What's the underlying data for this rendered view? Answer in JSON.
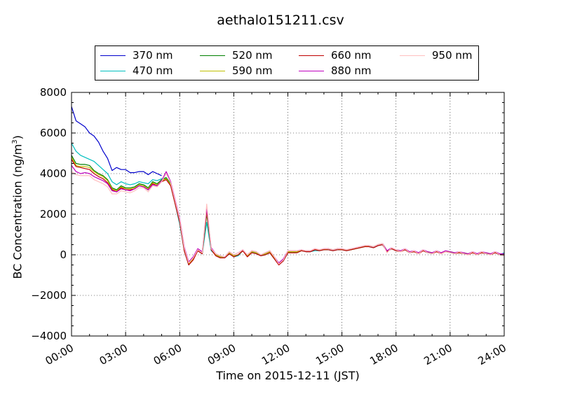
{
  "chart_data": {
    "type": "line",
    "title": "aethalo151211.csv",
    "xlabel": "Time on 2015-12-11 (JST)",
    "ylabel_main": "BC Concentration (ng/m",
    "ylabel_sup": "3",
    "ylabel_close": ")",
    "xlim": [
      0,
      24
    ],
    "ylim": [
      -4000,
      8000
    ],
    "x_ticks": [
      0,
      3,
      6,
      9,
      12,
      15,
      18,
      21,
      24
    ],
    "x_tick_labels": [
      "00:00",
      "03:00",
      "06:00",
      "09:00",
      "12:00",
      "15:00",
      "18:00",
      "21:00",
      "24:00"
    ],
    "y_ticks": [
      -4000,
      -2000,
      0,
      2000,
      4000,
      6000,
      8000
    ],
    "y_tick_labels": [
      "−4000",
      "−2000",
      "0",
      "2000",
      "4000",
      "6000",
      "8000"
    ],
    "grid": true,
    "legend_position": "top",
    "x": [
      0,
      0.25,
      0.5,
      0.75,
      1,
      1.25,
      1.5,
      1.75,
      2,
      2.25,
      2.5,
      2.75,
      3,
      3.25,
      3.5,
      3.75,
      4,
      4.25,
      4.5,
      4.75,
      5,
      5.25,
      5.5,
      5.75,
      6,
      6.25,
      6.5,
      6.75,
      7,
      7.25,
      7.5,
      7.75,
      8,
      8.25,
      8.5,
      8.75,
      9,
      9.25,
      9.5,
      9.75,
      10,
      10.25,
      10.5,
      10.75,
      11,
      11.25,
      11.5,
      11.75,
      12,
      12.25,
      12.5,
      12.75,
      13,
      13.25,
      13.5,
      13.75,
      14,
      14.25,
      14.5,
      14.75,
      15,
      15.25,
      15.5,
      15.75,
      16,
      16.25,
      16.5,
      16.75,
      17,
      17.25,
      17.5,
      17.75,
      18,
      18.25,
      18.5,
      18.75,
      19,
      19.25,
      19.5,
      19.75,
      20,
      20.25,
      20.5,
      20.75,
      21,
      21.25,
      21.5,
      21.75,
      22,
      22.25,
      22.5,
      22.75,
      23,
      23.25,
      23.5,
      23.75,
      24
    ],
    "series": [
      {
        "name": "370 nm",
        "color": "#0000cc",
        "values": [
          7300,
          6600,
          6450,
          6300,
          6000,
          5850,
          5550,
          5100,
          4750,
          4150,
          4300,
          4200,
          4200,
          4050,
          4050,
          4100,
          4100,
          3950,
          4100,
          4000,
          3900,
          null,
          null,
          null,
          null,
          null,
          null,
          null,
          null,
          null,
          null,
          null,
          null,
          null,
          null,
          null,
          null,
          null,
          null,
          null,
          null,
          null,
          null,
          null,
          null,
          null,
          null,
          null,
          null,
          null,
          null,
          null,
          null,
          null,
          null,
          null,
          null,
          null,
          null,
          null,
          null,
          null,
          null,
          null,
          null,
          null,
          null,
          null,
          null,
          null,
          null,
          null,
          null,
          null,
          null,
          null,
          null,
          null,
          null,
          null,
          null,
          null,
          null,
          null,
          null,
          null,
          null,
          null,
          null,
          null,
          null,
          null,
          null,
          null,
          null,
          null,
          null
        ]
      },
      {
        "name": "470 nm",
        "color": "#00bfbf",
        "values": [
          5500,
          5100,
          4900,
          4800,
          4700,
          4600,
          4400,
          4200,
          4000,
          3600,
          3450,
          3600,
          3500,
          3450,
          3500,
          3600,
          3550,
          3500,
          3700,
          3650,
          3750,
          3800,
          3400,
          2500,
          1500,
          200,
          -500,
          -200,
          200,
          50,
          1600,
          200,
          0,
          -150,
          -150,
          50,
          -100,
          -50,
          200,
          -50,
          100,
          100,
          -50,
          0,
          100,
          -200,
          -450,
          -300,
          100,
          150,
          100,
          200,
          150,
          150,
          200,
          200,
          250,
          250,
          200,
          250,
          250,
          200,
          250,
          300,
          350,
          400,
          400,
          350,
          450,
          500,
          150,
          300,
          200,
          200,
          250,
          100,
          150,
          100,
          200,
          100,
          100,
          150,
          100,
          150,
          100,
          100,
          100,
          50,
          50,
          100,
          50,
          100,
          50,
          50,
          100,
          0,
          100
        ]
      },
      {
        "name": "520 nm",
        "color": "#007f00",
        "values": [
          4900,
          4500,
          4450,
          4450,
          4400,
          4150,
          4000,
          3900,
          3700,
          3300,
          3200,
          3400,
          3300,
          3300,
          3350,
          3500,
          3450,
          3300,
          3600,
          3500,
          3700,
          3800,
          3500,
          2600,
          1700,
          300,
          -450,
          -200,
          250,
          100,
          2000,
          300,
          0,
          -100,
          -100,
          100,
          -50,
          0,
          200,
          -50,
          150,
          100,
          0,
          50,
          150,
          -150,
          -400,
          -250,
          150,
          150,
          150,
          200,
          200,
          200,
          250,
          250,
          250,
          300,
          250,
          300,
          250,
          250,
          250,
          300,
          350,
          400,
          450,
          400,
          500,
          550,
          200,
          300,
          250,
          200,
          250,
          150,
          150,
          100,
          200,
          150,
          100,
          150,
          100,
          150,
          150,
          100,
          100,
          100,
          50,
          100,
          50,
          100,
          100,
          50,
          100,
          50,
          50
        ]
      },
      {
        "name": "590 nm",
        "color": "#bfbf00",
        "values": [
          4800,
          4400,
          4350,
          4350,
          4300,
          4100,
          3950,
          3850,
          3650,
          3250,
          3150,
          3350,
          3250,
          3250,
          3300,
          3450,
          3400,
          3250,
          3550,
          3450,
          3650,
          3750,
          3450,
          2550,
          1650,
          250,
          -450,
          -200,
          250,
          100,
          2100,
          300,
          0,
          -100,
          -100,
          100,
          -50,
          0,
          200,
          -50,
          150,
          100,
          0,
          50,
          150,
          -150,
          -400,
          -250,
          150,
          150,
          150,
          200,
          200,
          200,
          250,
          250,
          250,
          300,
          250,
          300,
          250,
          250,
          250,
          300,
          350,
          400,
          450,
          400,
          500,
          550,
          200,
          300,
          250,
          200,
          250,
          150,
          150,
          100,
          200,
          150,
          100,
          150,
          100,
          150,
          150,
          100,
          100,
          100,
          50,
          100,
          50,
          100,
          100,
          50,
          100,
          50,
          50
        ]
      },
      {
        "name": "660 nm",
        "color": "#bf0000",
        "values": [
          4700,
          4350,
          4300,
          4250,
          4200,
          4000,
          3850,
          3750,
          3550,
          3200,
          3100,
          3300,
          3200,
          3200,
          3250,
          3400,
          3350,
          3200,
          3500,
          3400,
          3600,
          3700,
          3400,
          2500,
          1600,
          200,
          -500,
          -250,
          200,
          50,
          2200,
          250,
          -50,
          -150,
          -150,
          50,
          -100,
          0,
          200,
          -100,
          100,
          50,
          -50,
          0,
          100,
          -200,
          -500,
          -300,
          100,
          100,
          100,
          200,
          150,
          150,
          250,
          200,
          250,
          250,
          200,
          250,
          250,
          200,
          250,
          300,
          350,
          400,
          400,
          350,
          450,
          500,
          150,
          300,
          200,
          150,
          250,
          100,
          150,
          50,
          200,
          100,
          50,
          150,
          50,
          150,
          100,
          50,
          100,
          50,
          0,
          100,
          0,
          100,
          50,
          0,
          100,
          0,
          0
        ]
      },
      {
        "name": "880 nm",
        "color": "#bf00bf",
        "values": [
          4400,
          4100,
          4000,
          4050,
          4000,
          3850,
          3750,
          3650,
          3500,
          3150,
          3100,
          3250,
          3200,
          3150,
          3250,
          3400,
          3350,
          3200,
          3450,
          3400,
          3650,
          4100,
          3600,
          2700,
          1800,
          400,
          -350,
          -100,
          300,
          150,
          2300,
          350,
          50,
          -50,
          -100,
          150,
          0,
          100,
          250,
          0,
          200,
          150,
          0,
          100,
          200,
          -100,
          -400,
          -200,
          200,
          200,
          200,
          250,
          200,
          200,
          300,
          250,
          300,
          300,
          250,
          300,
          300,
          250,
          300,
          350,
          400,
          450,
          450,
          400,
          500,
          550,
          200,
          350,
          250,
          200,
          300,
          150,
          200,
          100,
          250,
          150,
          100,
          200,
          100,
          200,
          150,
          100,
          150,
          100,
          50,
          150,
          50,
          150,
          100,
          50,
          150,
          50,
          50
        ]
      },
      {
        "name": "950 nm",
        "color": "#ffbfbf",
        "values": [
          4100,
          3950,
          3900,
          3900,
          3900,
          3700,
          3600,
          3500,
          3350,
          3000,
          3000,
          3150,
          3100,
          3050,
          3150,
          3300,
          3300,
          3100,
          3400,
          3350,
          3600,
          4000,
          3550,
          2650,
          1750,
          350,
          -400,
          -150,
          250,
          100,
          2500,
          300,
          50,
          -50,
          -100,
          150,
          0,
          100,
          250,
          0,
          200,
          150,
          0,
          100,
          200,
          -100,
          -450,
          -250,
          200,
          200,
          200,
          250,
          200,
          200,
          300,
          250,
          300,
          300,
          250,
          300,
          300,
          250,
          300,
          350,
          400,
          450,
          450,
          400,
          500,
          550,
          100,
          350,
          250,
          150,
          300,
          100,
          200,
          50,
          250,
          100,
          50,
          200,
          50,
          150,
          100,
          50,
          150,
          50,
          0,
          150,
          0,
          150,
          50,
          0,
          150,
          0,
          -50
        ]
      }
    ]
  }
}
